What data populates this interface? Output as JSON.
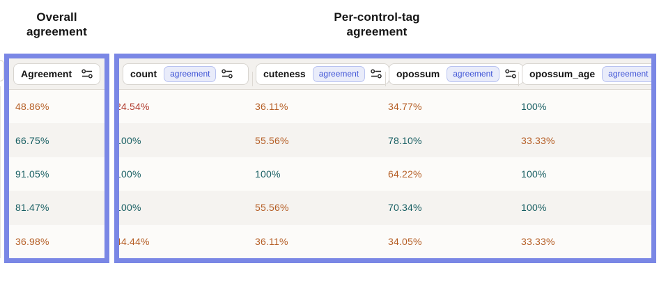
{
  "colors": {
    "teal": "#175e62",
    "orange": "#b55e25",
    "red": "#b13b2e",
    "highlight_border": "#7a87e5",
    "badge_text": "#4156d6",
    "badge_bg": "#e9ecfa"
  },
  "left_panel": {
    "title_lines": [
      "Overall",
      "agreement"
    ],
    "table": {
      "header_label": "Agreement",
      "rows": [
        {
          "value": "48.86%",
          "color": "orange"
        },
        {
          "value": "66.75%",
          "color": "teal"
        },
        {
          "value": "91.05%",
          "color": "teal"
        },
        {
          "value": "81.47%",
          "color": "teal"
        },
        {
          "value": "36.98%",
          "color": "orange"
        }
      ]
    }
  },
  "right_panel": {
    "title_lines": [
      "Per-control-tag",
      "agreement"
    ],
    "table": {
      "columns": [
        {
          "label": "count",
          "badge": "agreement"
        },
        {
          "label": "cuteness",
          "badge": "agreement"
        },
        {
          "label": "opossum",
          "badge": "agreement"
        },
        {
          "label": "opossum_age",
          "badge": "agreement"
        }
      ],
      "rows": [
        [
          {
            "value": "24.54%",
            "color": "red"
          },
          {
            "value": "36.11%",
            "color": "orange"
          },
          {
            "value": "34.77%",
            "color": "orange"
          },
          {
            "value": "100%",
            "color": "teal"
          }
        ],
        [
          {
            "value": "100%",
            "color": "teal"
          },
          {
            "value": "55.56%",
            "color": "orange"
          },
          {
            "value": "78.10%",
            "color": "teal"
          },
          {
            "value": "33.33%",
            "color": "orange"
          }
        ],
        [
          {
            "value": "100%",
            "color": "teal"
          },
          {
            "value": "100%",
            "color": "teal"
          },
          {
            "value": "64.22%",
            "color": "orange"
          },
          {
            "value": "100%",
            "color": "teal"
          }
        ],
        [
          {
            "value": "100%",
            "color": "teal"
          },
          {
            "value": "55.56%",
            "color": "orange"
          },
          {
            "value": "70.34%",
            "color": "teal"
          },
          {
            "value": "100%",
            "color": "teal"
          }
        ],
        [
          {
            "value": "44.44%",
            "color": "orange"
          },
          {
            "value": "36.11%",
            "color": "orange"
          },
          {
            "value": "34.05%",
            "color": "orange"
          },
          {
            "value": "33.33%",
            "color": "orange"
          }
        ]
      ]
    }
  }
}
